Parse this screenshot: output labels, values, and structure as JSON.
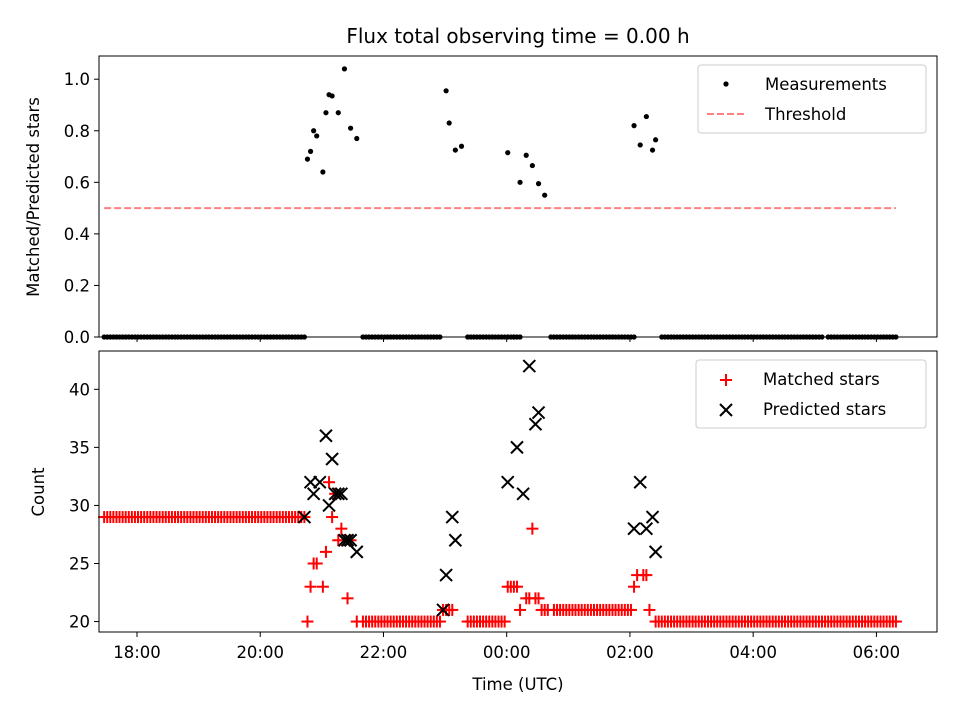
{
  "chart_data": [
    {
      "type": "scatter",
      "title": "Flux total observing time = 0.00 h",
      "xlabel": "",
      "ylabel": "Matched/Predicted stars",
      "xlim": [
        "17:23",
        "06:59"
      ],
      "ylim": [
        0.0,
        1.09
      ],
      "yticks": [
        "0.0",
        "0.2",
        "0.4",
        "0.6",
        "0.8",
        "1.0"
      ],
      "grid": false,
      "legend_position": "top-right",
      "series": [
        {
          "name": "Measurements",
          "color": "#000000",
          "marker": "dot",
          "points": [
            [
              "20:46",
              0.69
            ],
            [
              "20:49",
              0.72
            ],
            [
              "20:52",
              0.8
            ],
            [
              "20:55",
              0.78
            ],
            [
              "21:01",
              0.64
            ],
            [
              "21:04",
              0.87
            ],
            [
              "21:07",
              0.94
            ],
            [
              "21:10",
              0.935
            ],
            [
              "21:16",
              0.87
            ],
            [
              "21:22",
              1.04
            ],
            [
              "21:28",
              0.81
            ],
            [
              "21:34",
              0.77
            ],
            [
              "23:01",
              0.955
            ],
            [
              "23:04",
              0.83
            ],
            [
              "23:10",
              0.725
            ],
            [
              "23:16",
              0.74
            ],
            [
              "00:01",
              0.715
            ],
            [
              "00:13",
              0.6
            ],
            [
              "00:19",
              0.705
            ],
            [
              "00:25",
              0.665
            ],
            [
              "00:31",
              0.595
            ],
            [
              "00:37",
              0.55
            ],
            [
              "02:04",
              0.82
            ],
            [
              "02:10",
              0.745
            ],
            [
              "02:16",
              0.855
            ],
            [
              "02:22",
              0.725
            ],
            [
              "02:25",
              0.765
            ]
          ],
          "zero_runs": [
            [
              "17:28",
              "20:43"
            ],
            [
              "21:40",
              "22:55"
            ],
            [
              "23:22",
              "00:07"
            ],
            [
              "00:07",
              "00:13"
            ],
            [
              "00:43",
              "02:04"
            ],
            [
              "02:31",
              "05:01"
            ],
            [
              "05:04",
              "05:07"
            ],
            [
              "05:13",
              "06:19"
            ]
          ]
        },
        {
          "name": "Threshold",
          "color": "#ff8080",
          "style": "dashed",
          "x": [
            "17:28",
            "06:19"
          ],
          "y": [
            0.5,
            0.5
          ]
        }
      ]
    },
    {
      "type": "scatter",
      "title": "",
      "xlabel": "Time (UTC)",
      "ylabel": "Count",
      "xlim": [
        "17:23",
        "06:59"
      ],
      "ylim": [
        19.1,
        43.3
      ],
      "yticks": [
        "20",
        "25",
        "30",
        "35",
        "40"
      ],
      "xticks": [
        "18:00",
        "20:00",
        "22:00",
        "00:00",
        "02:00",
        "04:00",
        "06:00"
      ],
      "grid": false,
      "legend_position": "top-right",
      "series": [
        {
          "name": "Matched stars",
          "color": "#ff0000",
          "marker": "plus",
          "runs": [
            {
              "from": "17:28",
              "to": "20:40",
              "value": 29
            },
            {
              "from": "21:40",
              "to": "22:55",
              "value": 20
            },
            {
              "from": "23:22",
              "to": "23:58",
              "value": 20
            },
            {
              "from": "00:46",
              "to": "01:58",
              "value": 21
            },
            {
              "from": "02:31",
              "to": "06:19",
              "value": 20
            }
          ],
          "points": [
            [
              "20:43",
              29
            ],
            [
              "20:46",
              20
            ],
            [
              "20:49",
              23
            ],
            [
              "20:52",
              25
            ],
            [
              "20:55",
              25
            ],
            [
              "21:01",
              23
            ],
            [
              "21:04",
              26
            ],
            [
              "21:07",
              32
            ],
            [
              "21:10",
              29
            ],
            [
              "21:13",
              31
            ],
            [
              "21:16",
              27
            ],
            [
              "21:19",
              28
            ],
            [
              "21:22",
              27
            ],
            [
              "21:25",
              22
            ],
            [
              "21:28",
              27
            ],
            [
              "21:34",
              20
            ],
            [
              "22:58",
              21
            ],
            [
              "23:01",
              21
            ],
            [
              "23:04",
              21
            ],
            [
              "23:07",
              21
            ],
            [
              "00:01",
              23
            ],
            [
              "00:04",
              23
            ],
            [
              "00:07",
              23
            ],
            [
              "00:10",
              23
            ],
            [
              "00:13",
              21
            ],
            [
              "00:19",
              22
            ],
            [
              "00:22",
              22
            ],
            [
              "00:25",
              28
            ],
            [
              "00:28",
              22
            ],
            [
              "00:31",
              22
            ],
            [
              "00:34",
              21
            ],
            [
              "00:37",
              21
            ],
            [
              "00:40",
              21
            ],
            [
              "02:01",
              21
            ],
            [
              "02:04",
              23
            ],
            [
              "02:07",
              24
            ],
            [
              "02:13",
              24
            ],
            [
              "02:16",
              24
            ],
            [
              "02:19",
              21
            ],
            [
              "02:25",
              20
            ],
            [
              "02:28",
              20
            ]
          ]
        },
        {
          "name": "Predicted stars",
          "color": "#000000",
          "marker": "x",
          "points": [
            [
              "20:43",
              29
            ],
            [
              "20:49",
              32
            ],
            [
              "20:52",
              31
            ],
            [
              "20:58",
              32
            ],
            [
              "21:04",
              36
            ],
            [
              "21:07",
              30
            ],
            [
              "21:10",
              34
            ],
            [
              "21:13",
              31
            ],
            [
              "21:16",
              31
            ],
            [
              "21:19",
              31
            ],
            [
              "21:22",
              27
            ],
            [
              "21:25",
              27
            ],
            [
              "21:28",
              27
            ],
            [
              "21:34",
              26
            ],
            [
              "22:58",
              21
            ],
            [
              "23:01",
              24
            ],
            [
              "23:07",
              29
            ],
            [
              "23:10",
              27
            ],
            [
              "00:01",
              32
            ],
            [
              "00:10",
              35
            ],
            [
              "00:16",
              31
            ],
            [
              "00:22",
              42
            ],
            [
              "00:28",
              37
            ],
            [
              "00:31",
              38
            ],
            [
              "02:04",
              28
            ],
            [
              "02:10",
              32
            ],
            [
              "02:16",
              28
            ],
            [
              "02:22",
              29
            ],
            [
              "02:25",
              26
            ]
          ]
        }
      ]
    }
  ]
}
